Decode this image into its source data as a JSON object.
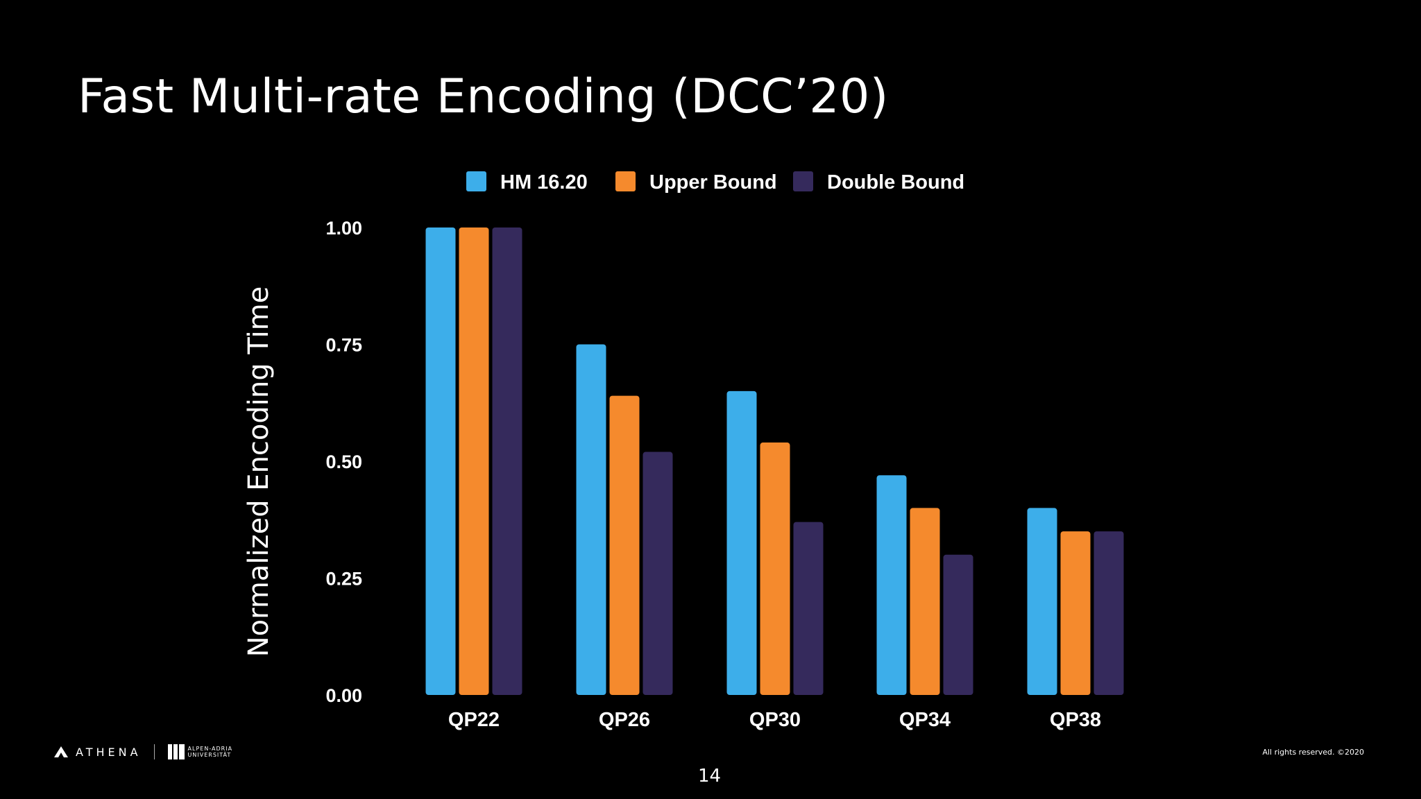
{
  "slide": {
    "title": "Fast Multi-rate Encoding (DCC’20)",
    "page_number": "14",
    "footer": {
      "rights": "All rights reserved.  ©2020",
      "athena_logo": "ATHENA",
      "university_logo_line1": "ALPEN-ADRIA",
      "university_logo_line2": "UNIVERSITÄT"
    }
  },
  "chart_data": {
    "type": "bar",
    "title": "",
    "xlabel": "",
    "ylabel": "Normalized Encoding Time",
    "categories": [
      "QP22",
      "QP26",
      "QP30",
      "QP34",
      "QP38"
    ],
    "series": [
      {
        "name": "HM 16.20",
        "color": "#3daeea",
        "values": [
          1.0,
          0.75,
          0.65,
          0.47,
          0.4
        ]
      },
      {
        "name": "Upper Bound",
        "color": "#f58a2d",
        "values": [
          1.0,
          0.64,
          0.54,
          0.4,
          0.35
        ]
      },
      {
        "name": "Double Bound",
        "color": "#352a5c",
        "values": [
          1.0,
          0.52,
          0.37,
          0.3,
          0.35
        ]
      }
    ],
    "ylim": [
      0,
      1.0
    ],
    "yticks": [
      "0.00",
      "0.25",
      "0.50",
      "0.75",
      "1.00"
    ],
    "ytick_values": [
      0,
      0.25,
      0.5,
      0.75,
      1.0
    ],
    "grid": false,
    "legend_position": "top-center"
  }
}
